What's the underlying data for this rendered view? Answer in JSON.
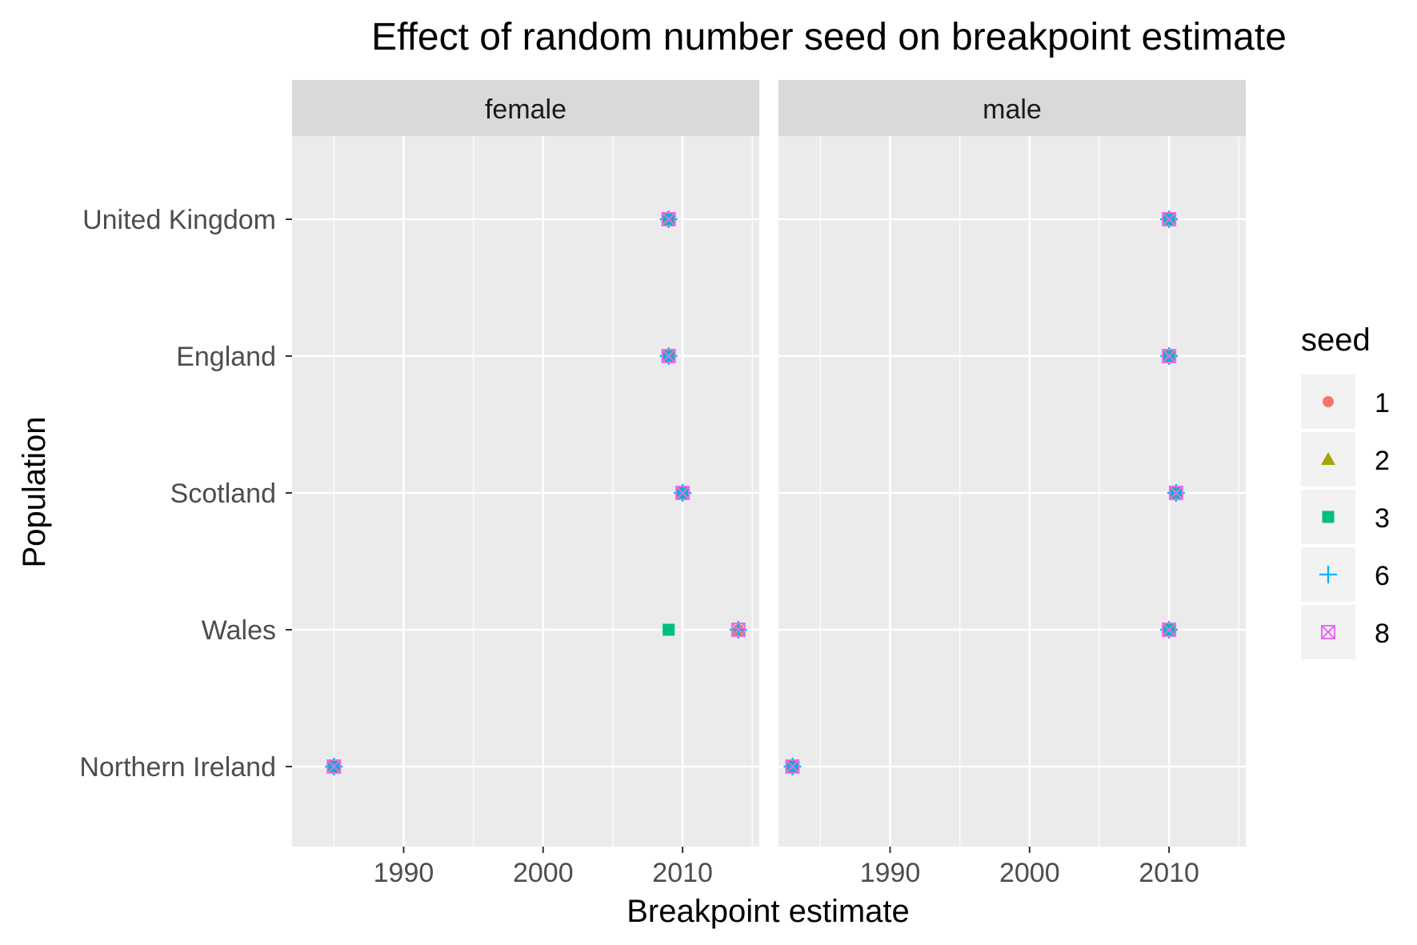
{
  "chart_data": {
    "type": "scatter",
    "title": "Effect of random number seed on breakpoint estimate",
    "xlabel": "Breakpoint estimate",
    "ylabel": "Population",
    "xlim": [
      1982,
      2015.5
    ],
    "x_ticks": [
      1990,
      2000,
      2010
    ],
    "x_tick_labels": [
      "1990",
      "2000",
      "2010"
    ],
    "categories": [
      "United Kingdom",
      "England",
      "Scotland",
      "Wales",
      "Northern Ireland"
    ],
    "panels": [
      "female",
      "male"
    ],
    "grid": true,
    "legend": {
      "title": "seed",
      "placement": "right",
      "items": [
        {
          "label": "1",
          "color": "#F8766D",
          "shape": "circle"
        },
        {
          "label": "2",
          "color": "#A3A500",
          "shape": "triangle"
        },
        {
          "label": "3",
          "color": "#00BF7D",
          "shape": "square"
        },
        {
          "label": "6",
          "color": "#00B0F6",
          "shape": "plus"
        },
        {
          "label": "8",
          "color": "#E76BF3",
          "shape": "boxed-x"
        }
      ]
    },
    "series": [
      {
        "name": "1",
        "panels": {
          "female": {
            "United Kingdom": 2009,
            "England": 2009,
            "Scotland": 2010,
            "Wales": 2014,
            "Northern Ireland": 1985
          },
          "male": {
            "United Kingdom": 2010,
            "England": 2010,
            "Scotland": 2010.5,
            "Wales": 2010,
            "Northern Ireland": 1983
          }
        }
      },
      {
        "name": "2",
        "panels": {
          "female": {
            "United Kingdom": 2009,
            "England": 2009,
            "Scotland": 2010,
            "Wales": 2014,
            "Northern Ireland": 1985
          },
          "male": {
            "United Kingdom": 2010,
            "England": 2010,
            "Scotland": 2010.5,
            "Wales": 2010,
            "Northern Ireland": 1983
          }
        }
      },
      {
        "name": "3",
        "panels": {
          "female": {
            "United Kingdom": 2009,
            "England": 2009,
            "Scotland": 2010,
            "Wales": 2009,
            "Northern Ireland": 1985
          },
          "male": {
            "United Kingdom": 2010,
            "England": 2010,
            "Scotland": 2010.5,
            "Wales": 2010,
            "Northern Ireland": 1983
          }
        }
      },
      {
        "name": "6",
        "panels": {
          "female": {
            "United Kingdom": 2009,
            "England": 2009,
            "Scotland": 2010,
            "Wales": 2014,
            "Northern Ireland": 1985
          },
          "male": {
            "United Kingdom": 2010,
            "England": 2010,
            "Scotland": 2010.5,
            "Wales": 2010,
            "Northern Ireland": 1983
          }
        }
      },
      {
        "name": "8",
        "panels": {
          "female": {
            "United Kingdom": 2009,
            "England": 2009,
            "Scotland": 2010,
            "Wales": 2014,
            "Northern Ireland": 1985
          },
          "male": {
            "United Kingdom": 2010,
            "England": 2010,
            "Scotland": 2010.5,
            "Wales": 2010,
            "Northern Ireland": 1983
          }
        }
      }
    ]
  }
}
